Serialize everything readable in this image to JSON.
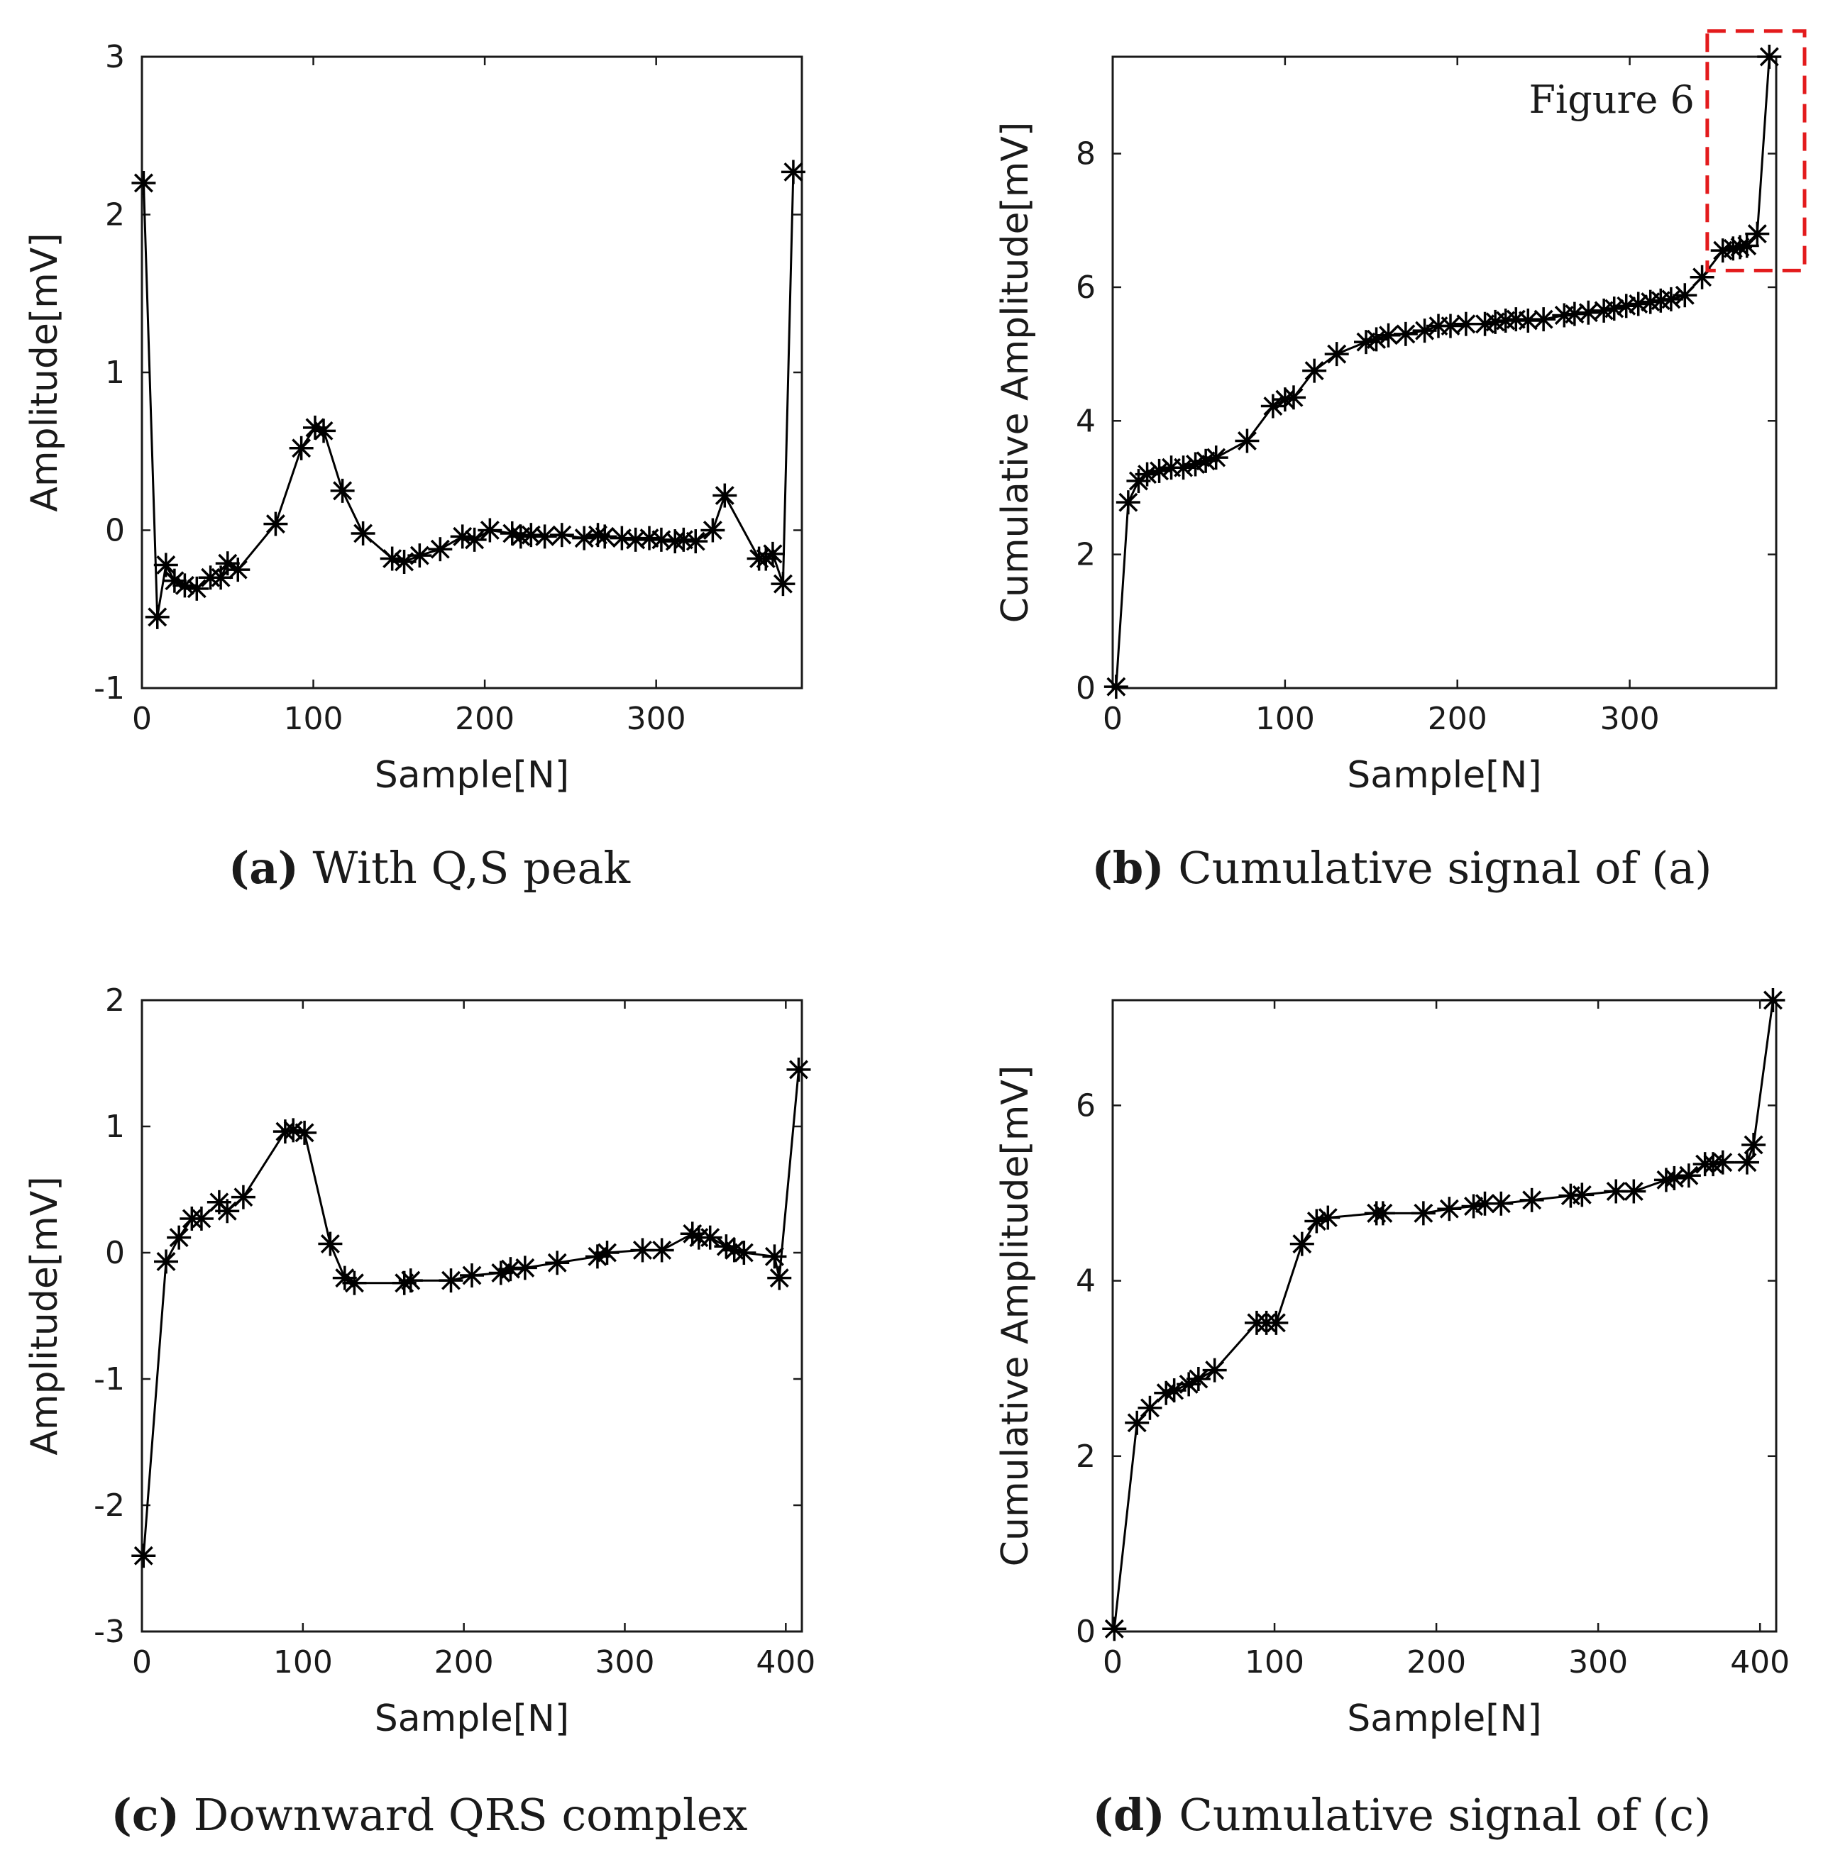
{
  "colors": {
    "ink": "#000000",
    "highlight": "#e31a1c"
  },
  "chart_data": [
    {
      "id": "a",
      "type": "line",
      "marker": "asterisk",
      "caption_letter": "(a)",
      "caption_text": "With Q,S peak",
      "xlabel": "Sample[N]",
      "ylabel": "Amplitude[mV]",
      "xlim": [
        0,
        385
      ],
      "ylim": [
        -1,
        3
      ],
      "xticks": [
        "0",
        "100",
        "200",
        "300"
      ],
      "yticks": [
        "-1",
        "0",
        "1",
        "2",
        "3"
      ],
      "x": [
        1,
        9,
        14,
        19,
        25,
        32,
        40,
        46,
        50,
        56,
        78,
        93,
        101,
        106,
        117,
        129,
        146,
        153,
        162,
        174,
        187,
        194,
        203,
        216,
        221,
        227,
        235,
        245,
        258,
        266,
        270,
        280,
        288,
        296,
        303,
        311,
        316,
        323,
        333,
        340,
        360,
        364,
        368,
        374,
        380
      ],
      "y": [
        2.2,
        -0.55,
        -0.22,
        -0.32,
        -0.35,
        -0.37,
        -0.3,
        -0.3,
        -0.21,
        -0.25,
        0.04,
        0.52,
        0.65,
        0.63,
        0.25,
        -0.02,
        -0.18,
        -0.2,
        -0.16,
        -0.12,
        -0.04,
        -0.06,
        0.0,
        -0.02,
        -0.04,
        -0.03,
        -0.04,
        -0.03,
        -0.05,
        -0.03,
        -0.04,
        -0.05,
        -0.06,
        -0.05,
        -0.06,
        -0.07,
        -0.06,
        -0.07,
        0.0,
        0.22,
        -0.18,
        -0.18,
        -0.15,
        -0.34,
        2.27
      ]
    },
    {
      "id": "b",
      "type": "line",
      "marker": "asterisk",
      "caption_letter": "(b)",
      "caption_text": "Cumulative signal of (a)",
      "xlabel": "Sample[N]",
      "ylabel": "Cumulative Amplitude[mV]",
      "xlim": [
        0,
        385
      ],
      "ylim": [
        0,
        9.45
      ],
      "xticks": [
        "0",
        "100",
        "200",
        "300"
      ],
      "yticks": [
        "0",
        "2",
        "4",
        "6",
        "8"
      ],
      "annotation": {
        "label": "Figure 6",
        "x_range": [
          345,
          385
        ],
        "y_range": [
          6.25,
          9.75
        ]
      },
      "x": [
        2,
        9,
        15,
        20,
        27,
        34,
        41,
        48,
        54,
        60,
        78,
        93,
        100,
        105,
        117,
        130,
        147,
        153,
        160,
        170,
        181,
        189,
        196,
        205,
        216,
        222,
        228,
        234,
        241,
        250,
        262,
        268,
        276,
        285,
        291,
        298,
        305,
        312,
        318,
        324,
        332,
        342,
        354,
        360,
        364,
        368,
        374,
        381
      ],
      "y": [
        0.02,
        2.78,
        3.1,
        3.2,
        3.25,
        3.3,
        3.3,
        3.35,
        3.4,
        3.45,
        3.7,
        4.22,
        4.32,
        4.35,
        4.75,
        5.0,
        5.18,
        5.22,
        5.28,
        5.3,
        5.35,
        5.42,
        5.42,
        5.45,
        5.45,
        5.48,
        5.5,
        5.52,
        5.5,
        5.52,
        5.58,
        5.6,
        5.62,
        5.65,
        5.68,
        5.72,
        5.75,
        5.78,
        5.8,
        5.82,
        5.88,
        6.15,
        6.55,
        6.58,
        6.6,
        6.62,
        6.8,
        9.45
      ]
    },
    {
      "id": "c",
      "type": "line",
      "marker": "asterisk",
      "caption_letter": "(c)",
      "caption_text": "Downward QRS complex",
      "xlabel": "Sample[N]",
      "ylabel": "Amplitude[mV]",
      "xlim": [
        0,
        410
      ],
      "ylim": [
        -3,
        2
      ],
      "xticks": [
        "0",
        "100",
        "200",
        "300",
        "400"
      ],
      "yticks": [
        "-3",
        "-2",
        "-1",
        "0",
        "1",
        "2"
      ],
      "x": [
        1,
        15,
        23,
        31,
        37,
        48,
        53,
        63,
        89,
        94,
        101,
        117,
        126,
        132,
        163,
        167,
        192,
        205,
        223,
        229,
        238,
        258,
        283,
        289,
        311,
        323,
        342,
        346,
        353,
        363,
        368,
        374,
        393,
        396,
        408
      ],
      "y": [
        -2.4,
        -0.07,
        0.12,
        0.27,
        0.27,
        0.4,
        0.33,
        0.44,
        0.96,
        0.97,
        0.95,
        0.07,
        -0.2,
        -0.24,
        -0.24,
        -0.22,
        -0.22,
        -0.18,
        -0.16,
        -0.13,
        -0.12,
        -0.08,
        -0.03,
        0.0,
        0.02,
        0.02,
        0.15,
        0.12,
        0.12,
        0.05,
        0.02,
        0.0,
        -0.03,
        -0.2,
        1.45
      ]
    },
    {
      "id": "d",
      "type": "line",
      "marker": "asterisk",
      "caption_letter": "(d)",
      "caption_text": "Cumulative signal of (c)",
      "xlabel": "Sample[N]",
      "ylabel": "Cumulative Amplitude[mV]",
      "xlim": [
        0,
        410
      ],
      "ylim": [
        0,
        7.2
      ],
      "xticks": [
        "0",
        "100",
        "200",
        "300",
        "400"
      ],
      "yticks": [
        "0",
        "2",
        "4",
        "6"
      ],
      "x": [
        1,
        15,
        23,
        33,
        38,
        47,
        53,
        63,
        89,
        95,
        101,
        117,
        126,
        133,
        163,
        167,
        192,
        208,
        223,
        230,
        240,
        259,
        283,
        290,
        311,
        322,
        342,
        347,
        356,
        366,
        371,
        377,
        392,
        396,
        408
      ],
      "y": [
        0.03,
        2.38,
        2.55,
        2.72,
        2.75,
        2.82,
        2.88,
        2.98,
        3.52,
        3.52,
        3.52,
        4.42,
        4.68,
        4.72,
        4.77,
        4.77,
        4.77,
        4.82,
        4.85,
        4.88,
        4.88,
        4.92,
        4.97,
        4.98,
        5.02,
        5.02,
        5.15,
        5.17,
        5.2,
        5.33,
        5.33,
        5.35,
        5.35,
        5.55,
        7.2
      ]
    }
  ]
}
